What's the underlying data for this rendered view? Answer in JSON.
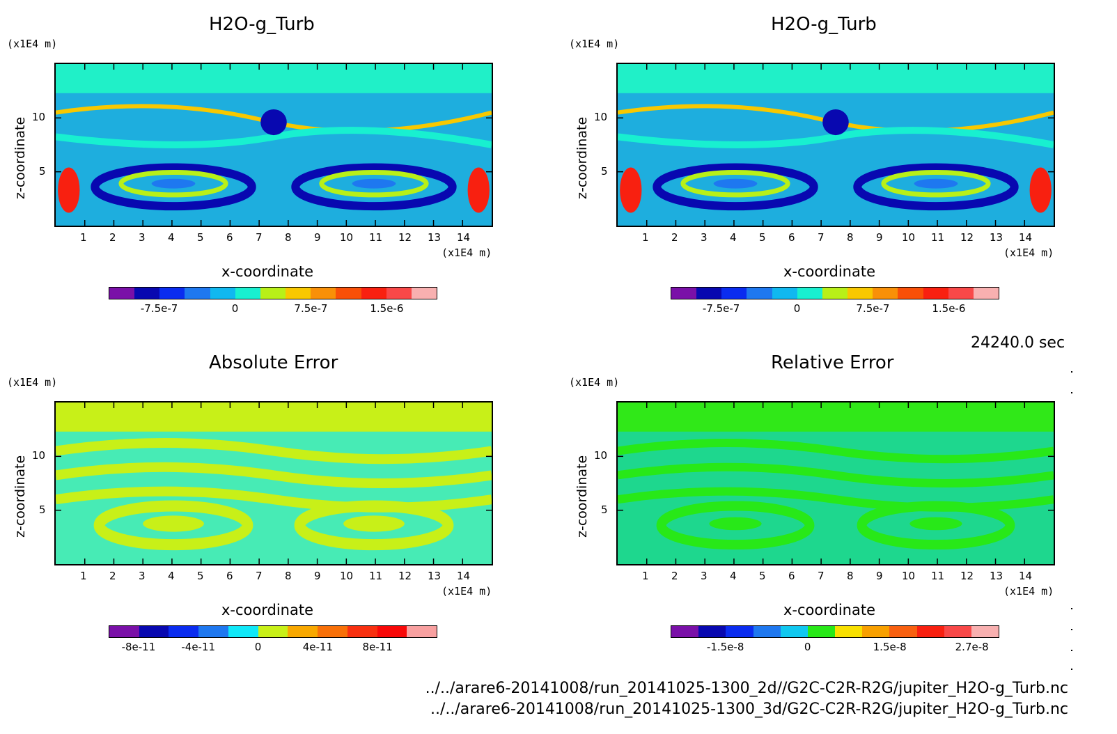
{
  "panels": [
    {
      "title": "H2O-g_Turb",
      "z_unit": "(x1E4 m)",
      "x_unit": "(x1E4 m)",
      "xlabel": "x-coordinate",
      "ylabel": "z-coordinate",
      "colorbar_colors": [
        "#7a10a8",
        "#0808b0",
        "#0a2cf0",
        "#1e78f0",
        "#10b8f0",
        "#18f0d0",
        "#b8f018",
        "#f8c800",
        "#f89008",
        "#f85008",
        "#f82010",
        "#f84848",
        "#f8b0b0"
      ],
      "colorbar_ticks": [
        "-7.5e-7",
        "0",
        "7.5e-7",
        "1.5e-6"
      ],
      "bg": "#20f0c8"
    },
    {
      "title": "H2O-g_Turb",
      "z_unit": "(x1E4 m)",
      "x_unit": "(x1E4 m)",
      "xlabel": "x-coordinate",
      "ylabel": "z-coordinate",
      "colorbar_colors": [
        "#7a10a8",
        "#0808b0",
        "#0a2cf0",
        "#1e78f0",
        "#10b8f0",
        "#18f0d0",
        "#b8f018",
        "#f8c800",
        "#f89008",
        "#f85008",
        "#f82010",
        "#f84848",
        "#f8b0b0"
      ],
      "colorbar_ticks": [
        "-7.5e-7",
        "0",
        "7.5e-7",
        "1.5e-6"
      ],
      "bg": "#20f0c8"
    },
    {
      "title": "Absolute Error",
      "z_unit": "(x1E4 m)",
      "x_unit": "(x1E4 m)",
      "xlabel": "x-coordinate",
      "ylabel": "z-coordinate",
      "colorbar_colors": [
        "#7a10a8",
        "#0808b0",
        "#0a2cf0",
        "#1e78f0",
        "#10e8f8",
        "#c8f018",
        "#f8a800",
        "#f87008",
        "#f83010",
        "#f80808",
        "#f8a0a0"
      ],
      "colorbar_ticks": [
        "-8e-11",
        "-4e-11",
        "0",
        "4e-11",
        "8e-11"
      ],
      "bg": "#c8f018"
    },
    {
      "title": "Relative Error",
      "z_unit": "(x1E4 m)",
      "x_unit": "(x1E4 m)",
      "xlabel": "x-coordinate",
      "ylabel": "z-coordinate",
      "colorbar_colors": [
        "#7a10a8",
        "#0808b0",
        "#0a2cf0",
        "#1e78f0",
        "#10c8f0",
        "#28e818",
        "#f8e000",
        "#f8a000",
        "#f86010",
        "#f82010",
        "#f84848",
        "#f8b0b0"
      ],
      "colorbar_ticks": [
        "-1.5e-8",
        "0",
        "1.5e-8",
        "2.7e-8"
      ],
      "bg": "#30e818"
    }
  ],
  "time_label": "24240.0 sec",
  "file_paths": [
    "../../arare6-20141008/run_20141025-1300_2d//G2C-C2R-R2G/jupiter_H2O-g_Turb.nc",
    "../../arare6-20141008/run_20141025-1300_3d/G2C-C2R-R2G/jupiter_H2O-g_Turb.nc"
  ],
  "chart_data": [
    {
      "type": "heatmap",
      "title": "H2O-g_Turb",
      "xlabel": "x-coordinate",
      "ylabel": "z-coordinate",
      "x_ticks": [
        1,
        2,
        3,
        4,
        5,
        6,
        7,
        8,
        9,
        10,
        11,
        12,
        13,
        14
      ],
      "y_ticks": [
        5,
        10
      ],
      "xlim": [
        0,
        15
      ],
      "ylim": [
        0,
        15
      ],
      "colorbar_ticks": [
        "-7.5e-7",
        "0",
        "7.5e-7",
        "1.5e-6"
      ]
    },
    {
      "type": "heatmap",
      "title": "H2O-g_Turb",
      "xlabel": "x-coordinate",
      "ylabel": "z-coordinate",
      "x_ticks": [
        1,
        2,
        3,
        4,
        5,
        6,
        7,
        8,
        9,
        10,
        11,
        12,
        13,
        14
      ],
      "y_ticks": [
        5,
        10
      ],
      "xlim": [
        0,
        15
      ],
      "ylim": [
        0,
        15
      ],
      "colorbar_ticks": [
        "-7.5e-7",
        "0",
        "7.5e-7",
        "1.5e-6"
      ]
    },
    {
      "type": "heatmap",
      "title": "Absolute Error",
      "xlabel": "x-coordinate",
      "ylabel": "z-coordinate",
      "x_ticks": [
        1,
        2,
        3,
        4,
        5,
        6,
        7,
        8,
        9,
        10,
        11,
        12,
        13,
        14
      ],
      "y_ticks": [
        5,
        10
      ],
      "xlim": [
        0,
        15
      ],
      "ylim": [
        0,
        15
      ],
      "colorbar_ticks": [
        "-8e-11",
        "-4e-11",
        "0",
        "4e-11",
        "8e-11"
      ]
    },
    {
      "type": "heatmap",
      "title": "Relative Error",
      "xlabel": "x-coordinate",
      "ylabel": "z-coordinate",
      "x_ticks": [
        1,
        2,
        3,
        4,
        5,
        6,
        7,
        8,
        9,
        10,
        11,
        12,
        13,
        14
      ],
      "y_ticks": [
        5,
        10
      ],
      "xlim": [
        0,
        15
      ],
      "ylim": [
        0,
        15
      ],
      "colorbar_ticks": [
        "-1.5e-8",
        "0",
        "1.5e-8",
        "2.7e-8"
      ]
    }
  ]
}
